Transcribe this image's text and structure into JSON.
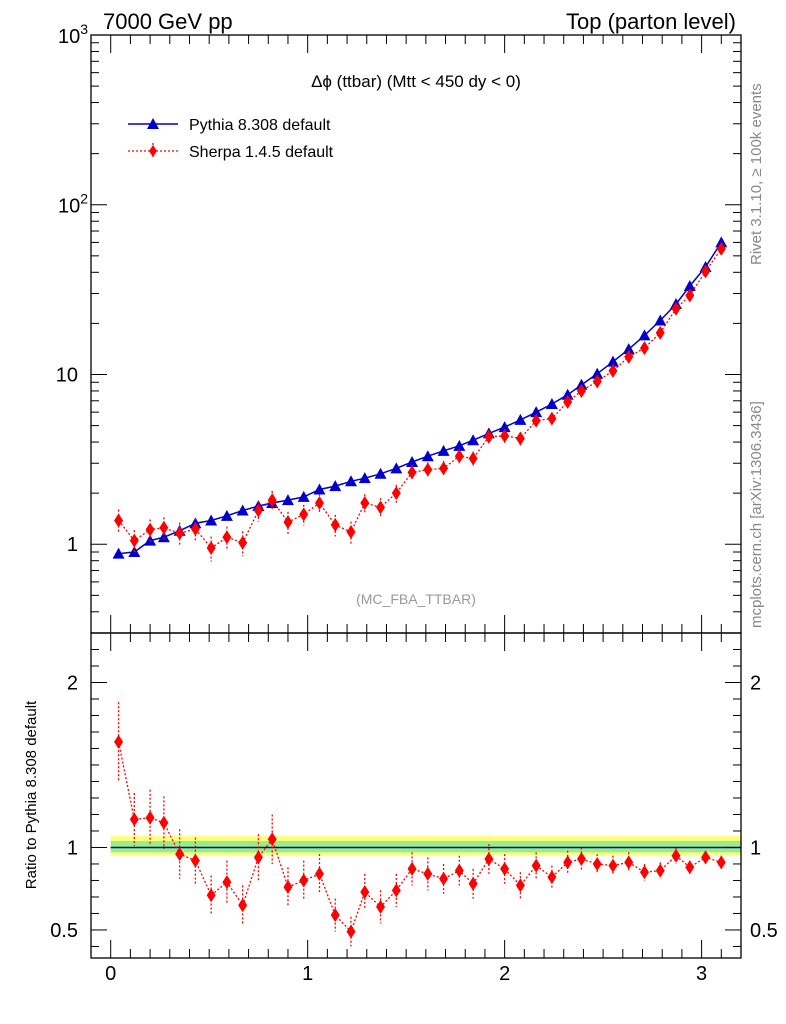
{
  "header": {
    "left": "7000 GeV pp",
    "right": "Top (parton level)"
  },
  "side": {
    "rivet": "Rivet 3.1.10, ≥ 100k events",
    "mcplots": "mcplots.cern.ch [arXiv:1306.3436]"
  },
  "chart_data": {
    "type": "line",
    "title": "Δϕ (ttbar) (Mtt < 450 dy < 0)",
    "watermark": "(MC_FBA_TTBAR)",
    "xlim": [
      -0.1,
      3.2
    ],
    "x_ticks": [
      "0",
      "1",
      "2",
      "3"
    ],
    "x_tick_values": [
      0,
      1,
      2,
      3
    ],
    "main": {
      "scale": "log",
      "ylim": [
        0.3,
        1000
      ],
      "y_tick_labels": [
        "1",
        "10",
        "10²",
        "10³"
      ],
      "y_tick_values": [
        1,
        10,
        100,
        1000
      ]
    },
    "ratio": {
      "ylabel": "Ratio to Pythia 8.308 default",
      "ylim": [
        0.33,
        2.3
      ],
      "y_tick_labels": [
        "0.5",
        "1",
        "2"
      ],
      "y_tick_values": [
        0.5,
        1,
        2
      ],
      "band_yellow": [
        0.95,
        1.07
      ],
      "band_green": [
        0.97,
        1.04
      ]
    },
    "x": [
      0.04,
      0.12,
      0.2,
      0.27,
      0.35,
      0.43,
      0.51,
      0.59,
      0.67,
      0.75,
      0.82,
      0.9,
      0.98,
      1.06,
      1.14,
      1.22,
      1.29,
      1.37,
      1.45,
      1.53,
      1.61,
      1.69,
      1.77,
      1.84,
      1.92,
      2.0,
      2.08,
      2.16,
      2.24,
      2.32,
      2.39,
      2.47,
      2.55,
      2.63,
      2.71,
      2.79,
      2.87,
      2.94,
      3.02,
      3.1
    ],
    "series": [
      {
        "name": "Pythia 8.308 default",
        "color": "#0000cc",
        "values": [
          0.88,
          0.9,
          1.05,
          1.1,
          1.2,
          1.33,
          1.38,
          1.47,
          1.58,
          1.68,
          1.75,
          1.82,
          1.9,
          2.1,
          2.2,
          2.35,
          2.45,
          2.6,
          2.8,
          3.05,
          3.3,
          3.55,
          3.8,
          4.1,
          4.5,
          4.9,
          5.4,
          6.0,
          6.7,
          7.6,
          8.7,
          10.1,
          11.9,
          14.1,
          17.0,
          20.8,
          26.0,
          33.2,
          43.0,
          60.0
        ]
      },
      {
        "name": "Sherpa 1.4.5 default",
        "color": "#ff0000",
        "values": [
          1.38,
          1.05,
          1.22,
          1.25,
          1.16,
          1.23,
          0.95,
          1.1,
          1.02,
          1.58,
          1.82,
          1.35,
          1.5,
          1.75,
          1.3,
          1.18,
          1.75,
          1.65,
          2.0,
          2.65,
          2.75,
          2.8,
          3.3,
          3.2,
          4.3,
          4.35,
          4.2,
          5.35,
          5.5,
          6.9,
          8.0,
          9.1,
          10.5,
          12.7,
          14.3,
          17.6,
          24.4,
          29.2,
          40.5,
          55.0
        ],
        "errors": [
          0.22,
          0.16,
          0.18,
          0.19,
          0.18,
          0.19,
          0.16,
          0.17,
          0.17,
          0.22,
          0.24,
          0.2,
          0.21,
          0.23,
          0.19,
          0.18,
          0.22,
          0.22,
          0.24,
          0.28,
          0.29,
          0.3,
          0.33,
          0.32,
          0.38,
          0.39,
          0.38,
          0.44,
          0.45,
          0.52,
          0.58,
          0.64,
          0.72,
          0.82,
          0.9,
          1.05,
          1.3,
          1.5,
          1.8,
          2.2
        ],
        "ratio": [
          1.64,
          1.17,
          1.18,
          1.15,
          0.96,
          0.92,
          0.71,
          0.79,
          0.65,
          0.94,
          1.05,
          0.76,
          0.8,
          0.84,
          0.59,
          0.49,
          0.73,
          0.64,
          0.74,
          0.87,
          0.84,
          0.81,
          0.86,
          0.78,
          0.93,
          0.87,
          0.77,
          0.89,
          0.82,
          0.91,
          0.93,
          0.9,
          0.89,
          0.91,
          0.85,
          0.86,
          0.95,
          0.88,
          0.94,
          0.91
        ],
        "ratio_errors": [
          0.24,
          0.16,
          0.17,
          0.16,
          0.15,
          0.14,
          0.12,
          0.13,
          0.12,
          0.14,
          0.15,
          0.12,
          0.12,
          0.12,
          0.1,
          0.09,
          0.11,
          0.1,
          0.1,
          0.1,
          0.1,
          0.09,
          0.09,
          0.09,
          0.09,
          0.09,
          0.08,
          0.08,
          0.07,
          0.07,
          0.07,
          0.06,
          0.06,
          0.06,
          0.05,
          0.05,
          0.05,
          0.04,
          0.04,
          0.04
        ]
      }
    ]
  }
}
